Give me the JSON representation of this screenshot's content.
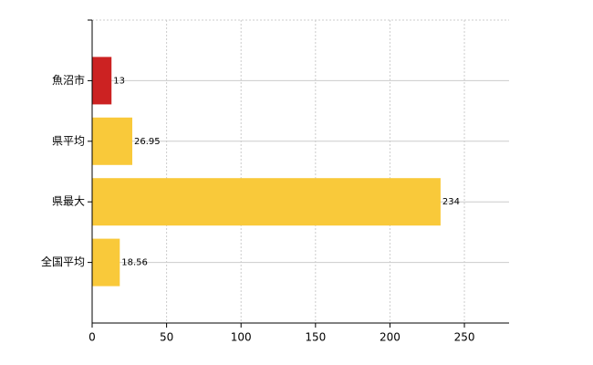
{
  "chart_data": {
    "type": "hbar",
    "categories": [
      "魚沼市",
      "県平均",
      "県最大",
      "全国平均"
    ],
    "values": [
      13,
      26.95,
      234,
      18.56
    ],
    "colors": [
      "#cc2222",
      "#f9c93a",
      "#f9c93a",
      "#f9c93a"
    ],
    "xlim": [
      0,
      280
    ],
    "xticks": [
      0,
      50,
      100,
      150,
      200,
      250
    ],
    "grid": true
  }
}
